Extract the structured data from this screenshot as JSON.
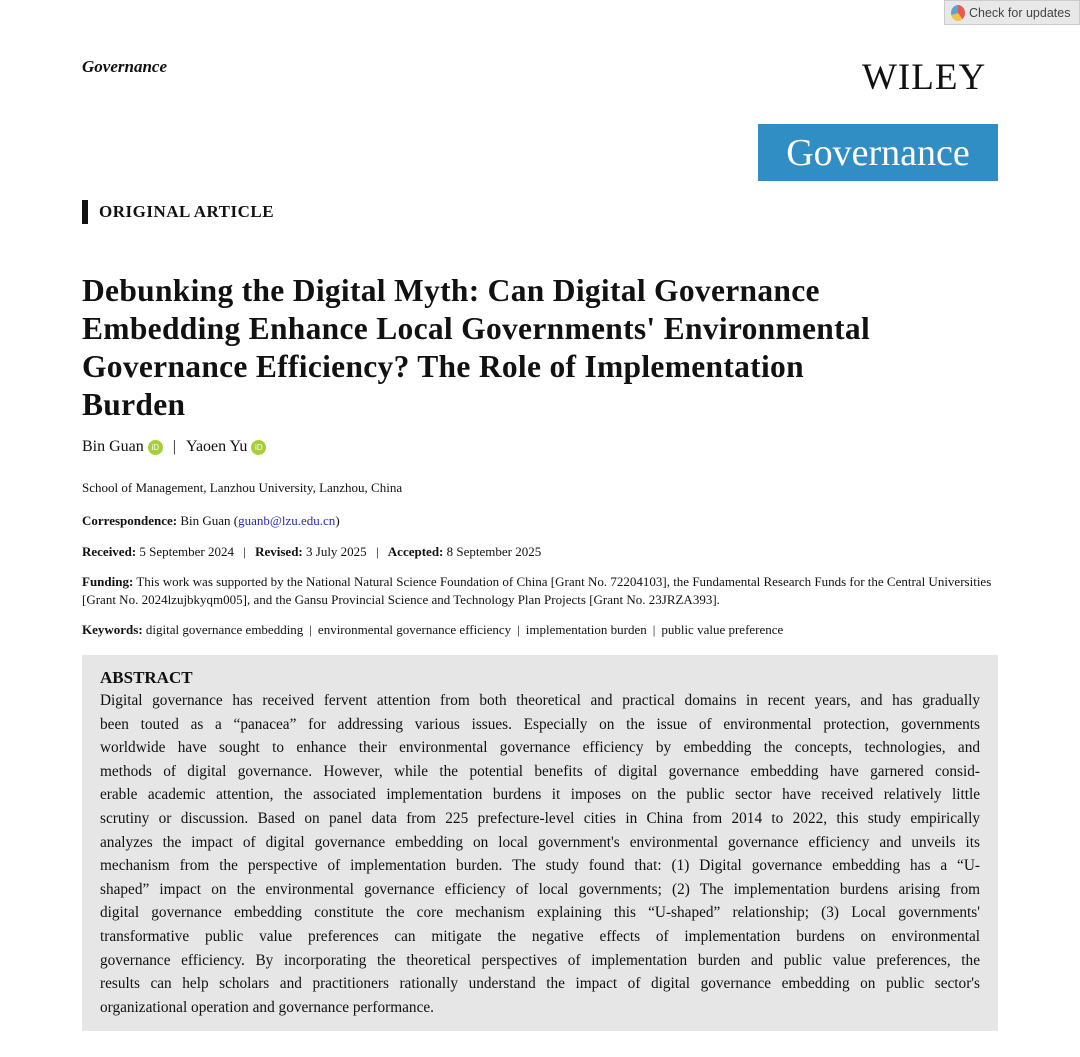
{
  "check_updates": {
    "label": "Check for updates"
  },
  "header": {
    "journal_running": "Governance",
    "publisher": "WILEY",
    "journal_logo": "Governance"
  },
  "article_type": "ORIGINAL ARTICLE",
  "title_lines": [
    "Debunking the Digital Myth: Can Digital Governance",
    "Embedding Enhance Local Governments' Environmental",
    "Governance Efficiency? The Role of Implementation",
    "Burden"
  ],
  "authors": [
    {
      "name": "Bin Guan",
      "icon": "orcid-icon"
    },
    {
      "name": "Yaoen Yu",
      "icon": "orcid-icon"
    }
  ],
  "author_separator": "|",
  "affiliation": "School of Management, Lanzhou University, Lanzhou, China",
  "correspondence": {
    "label": "Correspondence:",
    "name": "Bin Guan",
    "email": "guanb@lzu.edu.cn"
  },
  "dates": {
    "received_label": "Received:",
    "received": "5 September 2024",
    "revised_label": "Revised:",
    "revised": "3 July 2025",
    "accepted_label": "Accepted:",
    "accepted": "8 September 2025"
  },
  "funding": {
    "label": "Funding:",
    "text": "This work was supported by the National Natural Science Foundation of China [Grant No. 72204103], the Fundamental Research Funds for the Central Universities [Grant No. 2024lzujbkyqm005], and the Gansu Provincial Science and Technology Plan Projects [Grant No. 23JRZA393]."
  },
  "keywords": {
    "label": "Keywords:",
    "items": [
      "digital governance embedding",
      "environmental governance efficiency",
      "implementation burden",
      "public value preference"
    ]
  },
  "abstract": {
    "heading": "ABSTRACT",
    "lines": [
      "Digital governance has received fervent attention from both theoretical and practical domains in recent years, and has gradually",
      "been touted as a “panacea” for addressing various issues. Especially on the issue of environmental protection, governments",
      "worldwide have sought to enhance their environmental governance efficiency by embedding the concepts, technologies, and",
      "methods of digital governance. However, while the potential benefits of digital governance embedding have garnered consid-",
      "erable academic attention, the associated implementation burdens it imposes on the public sector have received relatively little",
      "scrutiny or discussion. Based on panel data from 225 prefecture-level cities in China from 2014 to 2022, this study empirically",
      "analyzes the impact of digital governance embedding on local government's environmental governance efficiency and unveils its",
      "mechanism from the perspective of implementation burden. The study found that: (1) Digital governance embedding has a “U-",
      "shaped” impact on the environmental governance efficiency of local governments; (2) The implementation burdens arising from",
      "digital governance embedding constitute the core mechanism explaining this “U-shaped” relationship; (3) Local governments'",
      "transformative public value preferences can mitigate the negative effects of implementation burdens on environmental",
      "governance efficiency. By incorporating the theoretical perspectives of implementation burden and public value preferences, the",
      "results can help scholars and practitioners rationally understand the impact of digital governance embedding on public sector's",
      "organizational operation and governance performance."
    ]
  }
}
